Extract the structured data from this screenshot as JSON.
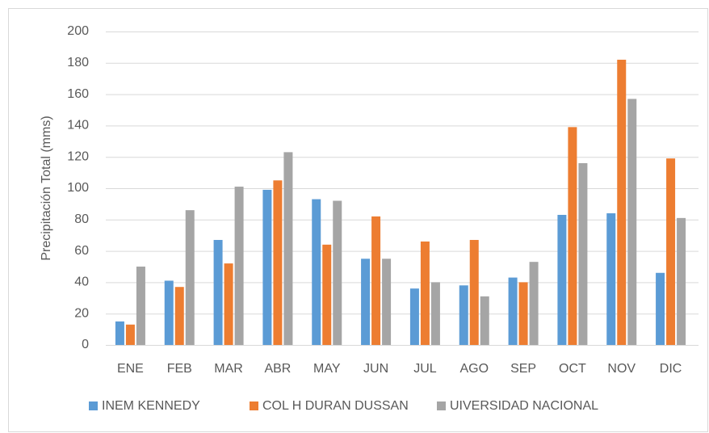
{
  "chart_data": {
    "type": "bar",
    "y_label": "Precipitación Total (mms)",
    "categories": [
      "ENE",
      "FEB",
      "MAR",
      "ABR",
      "MAY",
      "JUN",
      "JUL",
      "AGO",
      "SEP",
      "OCT",
      "NOV",
      "DIC"
    ],
    "series": [
      {
        "name": "INEM KENNEDY",
        "color": "#5b9bd5",
        "values": [
          15,
          41,
          67,
          99,
          93,
          55,
          36,
          38,
          43,
          83,
          84,
          46
        ]
      },
      {
        "name": "COL H DURAN DUSSAN",
        "color": "#ed7d31",
        "values": [
          13,
          37,
          52,
          105,
          64,
          82,
          66,
          67,
          40,
          139,
          182,
          119
        ]
      },
      {
        "name": "UIVERSIDAD NACIONAL",
        "color": "#a5a5a5",
        "values": [
          50,
          86,
          101,
          123,
          92,
          55,
          40,
          31,
          53,
          116,
          157,
          81
        ]
      }
    ],
    "ylim": [
      0,
      200
    ],
    "yticks": [
      0,
      20,
      40,
      60,
      80,
      100,
      120,
      140,
      160,
      180,
      200
    ],
    "grid": true,
    "legend": "bottom"
  }
}
